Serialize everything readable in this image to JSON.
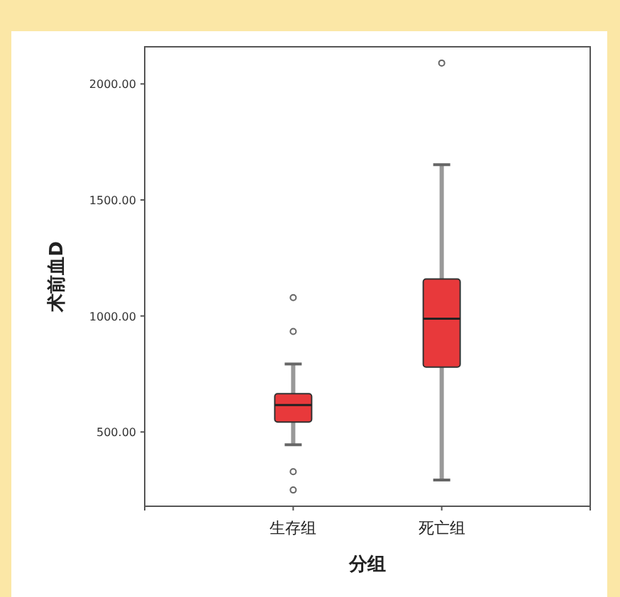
{
  "chart_data": {
    "type": "box",
    "xlabel": "分组",
    "ylabel": "术前血D",
    "categories": [
      "生存组",
      "死亡组"
    ],
    "color": "#e8393b",
    "boxes": [
      {
        "low": 445,
        "q1": 543,
        "median": 616,
        "q3": 665,
        "high": 793,
        "outliers": [
          1079,
          933,
          329,
          250
        ]
      },
      {
        "low": 293,
        "q1": 780,
        "median": 988,
        "q3": 1159,
        "high": 1652,
        "outliers": [
          2090
        ]
      }
    ],
    "ylim": [
      180,
      2160
    ],
    "yticks": [
      {
        "value": 500,
        "label": "500.00"
      },
      {
        "value": 1000,
        "label": "1000.00"
      },
      {
        "value": 1500,
        "label": "1500.00"
      },
      {
        "value": 2000,
        "label": "2000.00"
      }
    ],
    "grid": false
  }
}
